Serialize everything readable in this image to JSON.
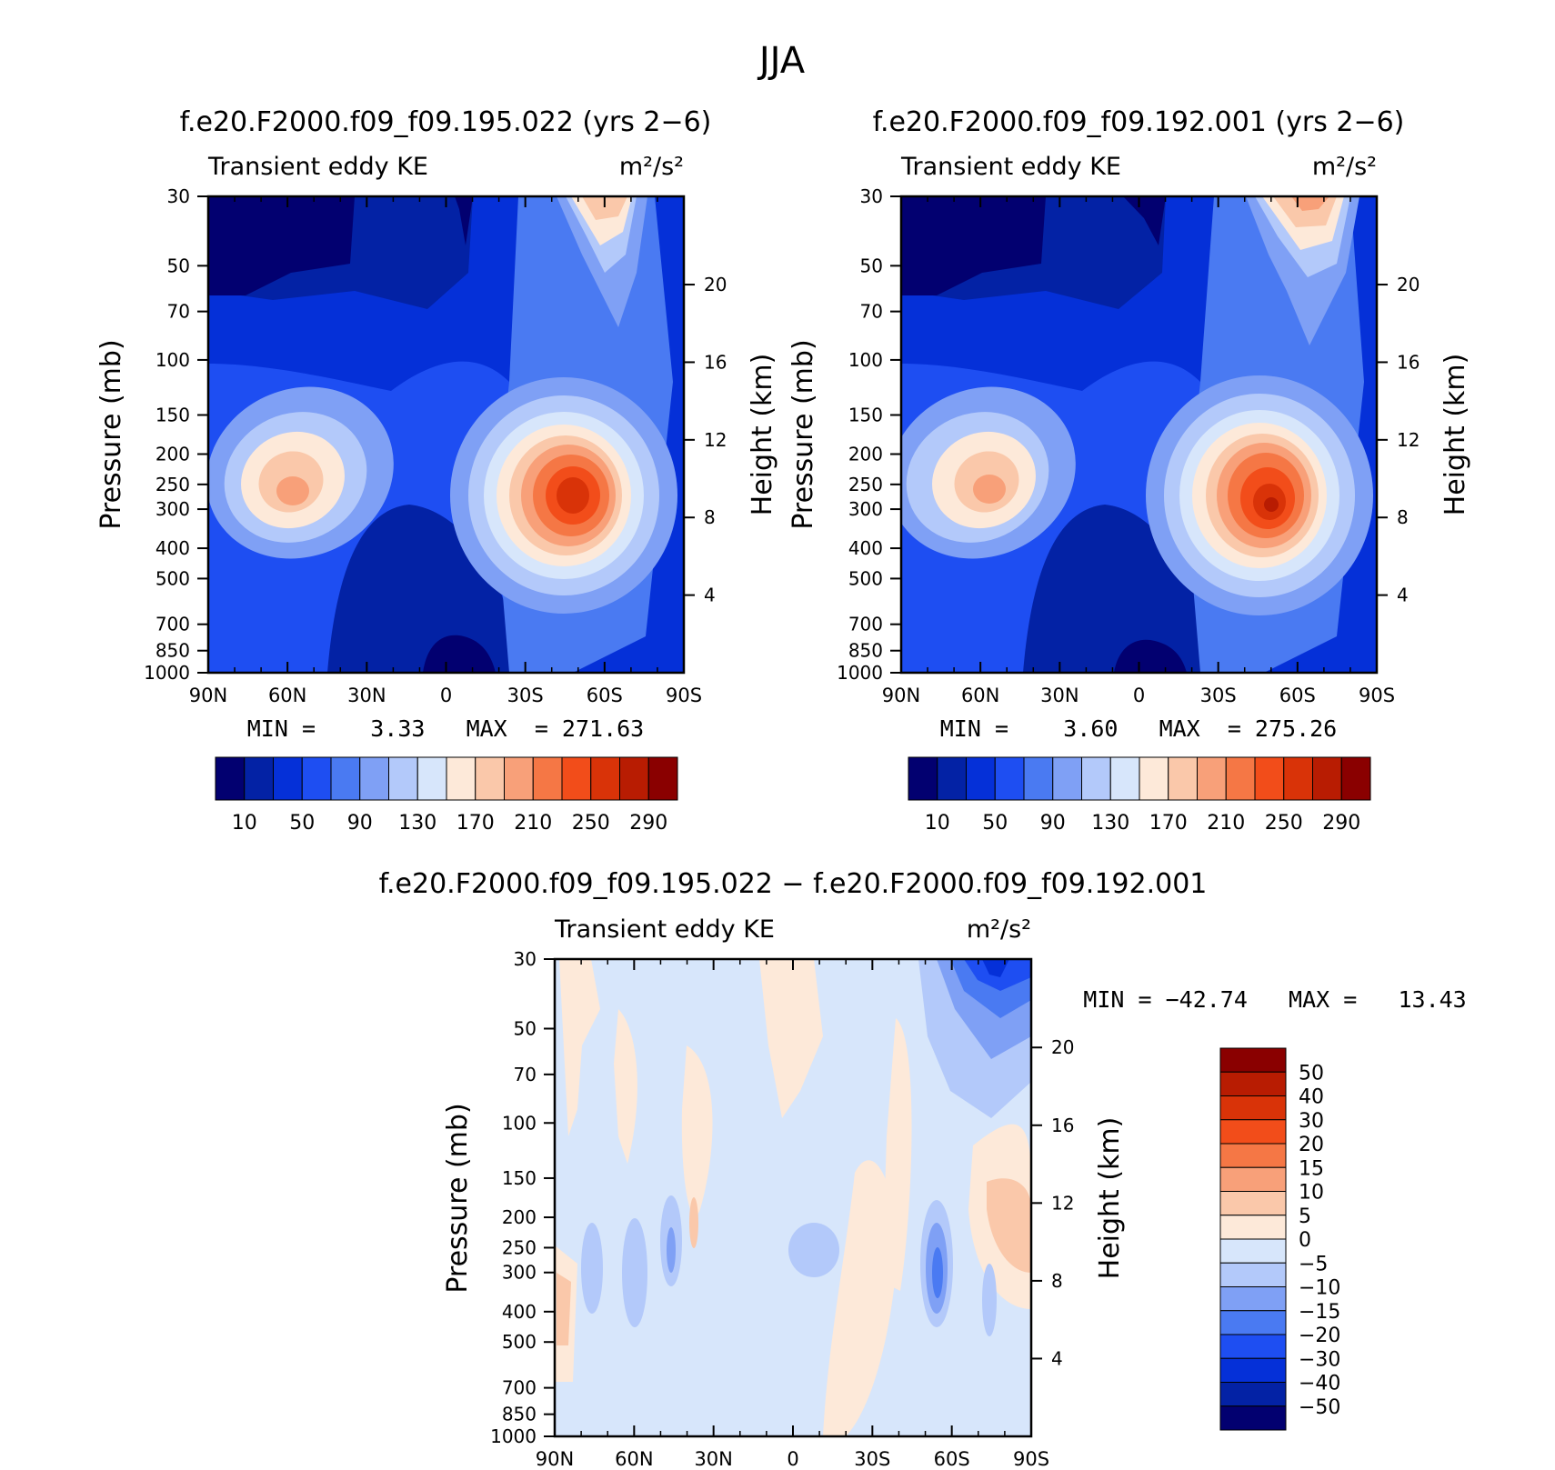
{
  "figure": {
    "main_title": "JJA"
  },
  "panels": [
    {
      "title": "f.e20.F2000.f09_f09.195.022 (yrs 2−6)",
      "left_label": "Transient eddy KE",
      "units": "m²/s²",
      "stats": "MIN =    3.33   MAX  = 271.63",
      "ylabel": "Pressure (mb)",
      "ylabel_right": "Height (km)"
    },
    {
      "title": "f.e20.F2000.f09_f09.192.001 (yrs 2−6)",
      "left_label": "Transient eddy KE",
      "units": "m²/s²",
      "stats": "MIN =    3.60   MAX  = 275.26",
      "ylabel": "Pressure (mb)",
      "ylabel_right": "Height (km)"
    },
    {
      "title": "f.e20.F2000.f09_f09.195.022 − f.e20.F2000.f09_f09.192.001",
      "left_label": "Transient eddy KE",
      "units": "m²/s²",
      "stats": "MIN = −42.74   MAX =   13.43",
      "ylabel": "Pressure (mb)",
      "ylabel_right": "Height (km)"
    }
  ],
  "colors": {
    "abs_palette": [
      "#020070",
      "#0322A5",
      "#0530D8",
      "#1E4EF2",
      "#4A7AF2",
      "#7FA0F5",
      "#B3C9FA",
      "#D7E6FB",
      "#FDE9D9",
      "#FAC8AA",
      "#F8A079",
      "#F57745",
      "#F24D1A",
      "#D93308",
      "#B81C02",
      "#8A0000"
    ],
    "diff_palette": [
      "#020070",
      "#0322A5",
      "#0530D8",
      "#1E4EF2",
      "#4A7AF2",
      "#7FA0F5",
      "#B3C9FA",
      "#D7E6FB",
      "#FDE9D9",
      "#FAC8AA",
      "#F8A079",
      "#F57745",
      "#F24D1A",
      "#D93308",
      "#B81C02",
      "#8A0000"
    ]
  },
  "chart_data": [
    {
      "type": "heatmap",
      "title": "f.e20.F2000.f09_f09.195.022 (yrs 2−6)",
      "xlabel": "",
      "ylabel": "Pressure (mb)",
      "y2label": "Height (km)",
      "x_ticks": [
        "90N",
        "60N",
        "30N",
        "0",
        "30S",
        "60S",
        "90S"
      ],
      "y_ticks": [
        30,
        50,
        70,
        100,
        150,
        200,
        250,
        300,
        400,
        500,
        700,
        850,
        1000
      ],
      "y2_ticks": [
        4,
        8,
        12,
        16,
        20
      ],
      "y_scale": "log",
      "ylim": [
        1000,
        30
      ],
      "min": 3.33,
      "max": 271.63,
      "colorbar_labels": [
        "10",
        "50",
        "90",
        "130",
        "170",
        "210",
        "250",
        "290"
      ],
      "levels": [
        10,
        30,
        50,
        70,
        90,
        110,
        130,
        150,
        170,
        190,
        210,
        230,
        250,
        270,
        290
      ],
      "features": [
        {
          "kind": "maximum",
          "lat": -45,
          "pressure": 280,
          "value": 260
        },
        {
          "kind": "maximum",
          "lat": 53,
          "pressure": 270,
          "value": 180
        },
        {
          "kind": "maximum",
          "lat": -60,
          "pressure": 30,
          "value": 190
        },
        {
          "kind": "minimum",
          "lat": 0,
          "pressure": 900,
          "value": 5
        }
      ]
    },
    {
      "type": "heatmap",
      "title": "f.e20.F2000.f09_f09.192.001 (yrs 2−6)",
      "xlabel": "",
      "ylabel": "Pressure (mb)",
      "y2label": "Height (km)",
      "x_ticks": [
        "90N",
        "60N",
        "30N",
        "0",
        "30S",
        "60S",
        "90S"
      ],
      "y_ticks": [
        30,
        50,
        70,
        100,
        150,
        200,
        250,
        300,
        400,
        500,
        700,
        850,
        1000
      ],
      "y2_ticks": [
        4,
        8,
        12,
        16,
        20
      ],
      "y_scale": "log",
      "ylim": [
        1000,
        30
      ],
      "min": 3.6,
      "max": 275.26,
      "colorbar_labels": [
        "10",
        "50",
        "90",
        "130",
        "170",
        "210",
        "250",
        "290"
      ],
      "levels": [
        10,
        30,
        50,
        70,
        90,
        110,
        130,
        150,
        170,
        190,
        210,
        230,
        250,
        270,
        290
      ],
      "features": [
        {
          "kind": "maximum",
          "lat": -48,
          "pressure": 290,
          "value": 270
        },
        {
          "kind": "maximum",
          "lat": 57,
          "pressure": 265,
          "value": 195
        },
        {
          "kind": "maximum",
          "lat": -68,
          "pressure": 30,
          "value": 200
        },
        {
          "kind": "minimum",
          "lat": 0,
          "pressure": 900,
          "value": 5
        }
      ]
    },
    {
      "type": "heatmap",
      "title": "f.e20.F2000.f09_f09.195.022 − f.e20.F2000.f09_f09.192.001",
      "xlabel": "",
      "ylabel": "Pressure (mb)",
      "y2label": "Height (km)",
      "x_ticks": [
        "90N",
        "60N",
        "30N",
        "0",
        "30S",
        "60S",
        "90S"
      ],
      "y_ticks": [
        30,
        50,
        70,
        100,
        150,
        200,
        250,
        300,
        400,
        500,
        700,
        850,
        1000
      ],
      "y2_ticks": [
        4,
        8,
        12,
        16,
        20
      ],
      "y_scale": "log",
      "ylim": [
        1000,
        30
      ],
      "min": -42.74,
      "max": 13.43,
      "colorbar_labels": [
        "50",
        "40",
        "30",
        "20",
        "15",
        "10",
        "5",
        "0",
        "−5",
        "−10",
        "−15",
        "−20",
        "−30",
        "−40",
        "−50"
      ],
      "levels": [
        -50,
        -40,
        -30,
        -20,
        -15,
        -10,
        -5,
        0,
        5,
        10,
        15,
        20,
        30,
        40,
        50
      ],
      "features": [
        {
          "kind": "minimum",
          "lat": -75,
          "pressure": 35,
          "value": -42.74
        },
        {
          "kind": "minimum",
          "lat": -55,
          "pressure": 320,
          "value": -20
        },
        {
          "kind": "maximum",
          "lat": -87,
          "pressure": 250,
          "value": 13.43
        },
        {
          "kind": "maximum",
          "lat": 88,
          "pressure": 450,
          "value": 10
        }
      ]
    }
  ]
}
